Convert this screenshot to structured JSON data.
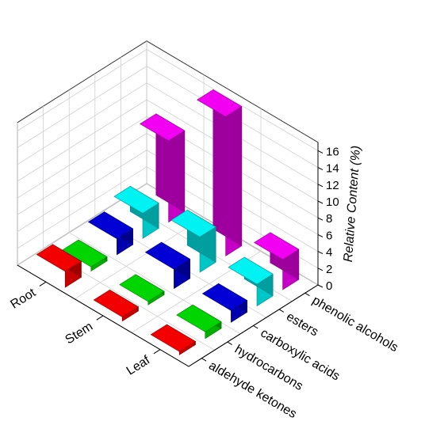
{
  "chart_data": {
    "type": "bar3d",
    "title": "",
    "zlabel": "Relative Content (%)",
    "zlim": [
      0,
      17
    ],
    "zticks": [
      0,
      2,
      4,
      6,
      8,
      10,
      12,
      14,
      16
    ],
    "rows": [
      "Leaf",
      "Stem",
      "Root"
    ],
    "categories": [
      "aldehyde ketones",
      "hydrocarbons",
      "carboxylic acids",
      "esters",
      "phenolic alcohols"
    ],
    "values": [
      [
        0.4,
        0.8,
        1.4,
        2.6,
        3.6
      ],
      [
        0.5,
        0.4,
        2.3,
        4.2,
        16.6
      ],
      [
        1.9,
        0.5,
        1.9,
        3.0,
        9.7
      ]
    ],
    "colors": [
      "#ff0000",
      "#00e000",
      "#0000e0",
      "#00ffff",
      "#ff00ff"
    ],
    "grid": true
  }
}
